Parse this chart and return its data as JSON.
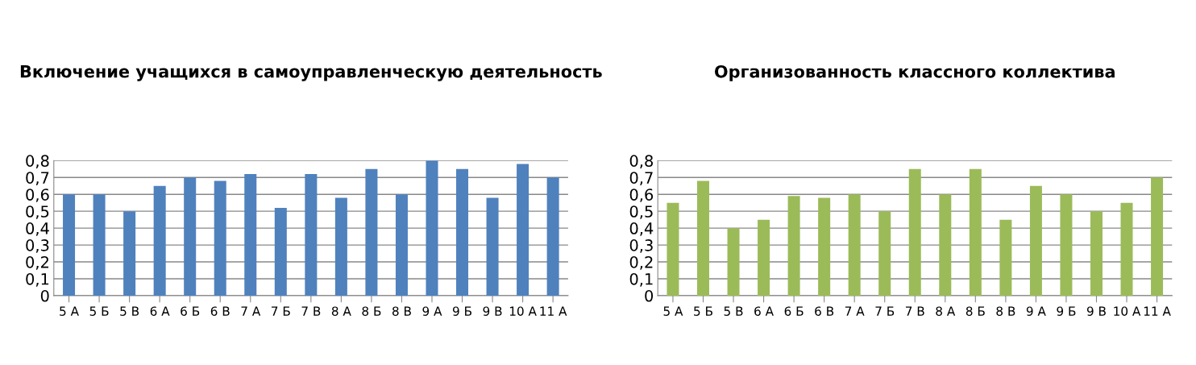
{
  "chart_data": [
    {
      "type": "bar",
      "title": "Включение учащихся в самоуправленческую деятельность",
      "categories": [
        "5 А",
        "5 Б",
        "5 В",
        "6 А",
        "6 Б",
        "6 В",
        "7 А",
        "7 Б",
        "7 В",
        "8 А",
        "8 Б",
        "8 В",
        "9 А",
        "9 Б",
        "9 В",
        "10 А",
        "11 А"
      ],
      "values": [
        0.6,
        0.6,
        0.5,
        0.65,
        0.7,
        0.68,
        0.72,
        0.52,
        0.72,
        0.58,
        0.75,
        0.6,
        0.8,
        0.75,
        0.58,
        0.78,
        0.7
      ],
      "color": "#4f81bd",
      "ylim": [
        0,
        0.8
      ],
      "yticks": [
        0,
        {
          "value": 0.1,
          "label": "0,1"
        },
        {
          "value": 0.2,
          "label": "0,2"
        },
        {
          "value": 0.3,
          "label": "0,3"
        },
        {
          "value": 0.4,
          "label": "0,4"
        },
        {
          "value": 0.5,
          "label": "0,5"
        },
        {
          "value": 0.6,
          "label": "0,6"
        },
        {
          "value": 0.7,
          "label": "0,7"
        },
        {
          "value": 0.8,
          "label": "0,8"
        }
      ],
      "grid": "y"
    },
    {
      "type": "bar",
      "title": "Организованность классного коллектива",
      "categories": [
        "5 А",
        "5 Б",
        "5 В",
        "6 А",
        "6 Б",
        "6 В",
        "7 А",
        "7 Б",
        "7 В",
        "8 А",
        "8 Б",
        "8 В",
        "9 А",
        "9 Б",
        "9 В",
        "10 А",
        "11 А"
      ],
      "values": [
        0.55,
        0.68,
        0.4,
        0.45,
        0.59,
        0.58,
        0.6,
        0.5,
        0.75,
        0.6,
        0.75,
        0.45,
        0.65,
        0.6,
        0.5,
        0.55,
        0.7
      ],
      "color": "#9bbb59",
      "ylim": [
        0,
        0.8
      ],
      "yticks": [
        0,
        {
          "value": 0.1,
          "label": "0,1"
        },
        {
          "value": 0.2,
          "label": "0,2"
        },
        {
          "value": 0.3,
          "label": "0,3"
        },
        {
          "value": 0.4,
          "label": "0,4"
        },
        {
          "value": 0.5,
          "label": "0,5"
        },
        {
          "value": 0.6,
          "label": "0,6"
        },
        {
          "value": 0.7,
          "label": "0,7"
        },
        {
          "value": 0.8,
          "label": "0,8"
        }
      ],
      "grid": "y"
    }
  ]
}
